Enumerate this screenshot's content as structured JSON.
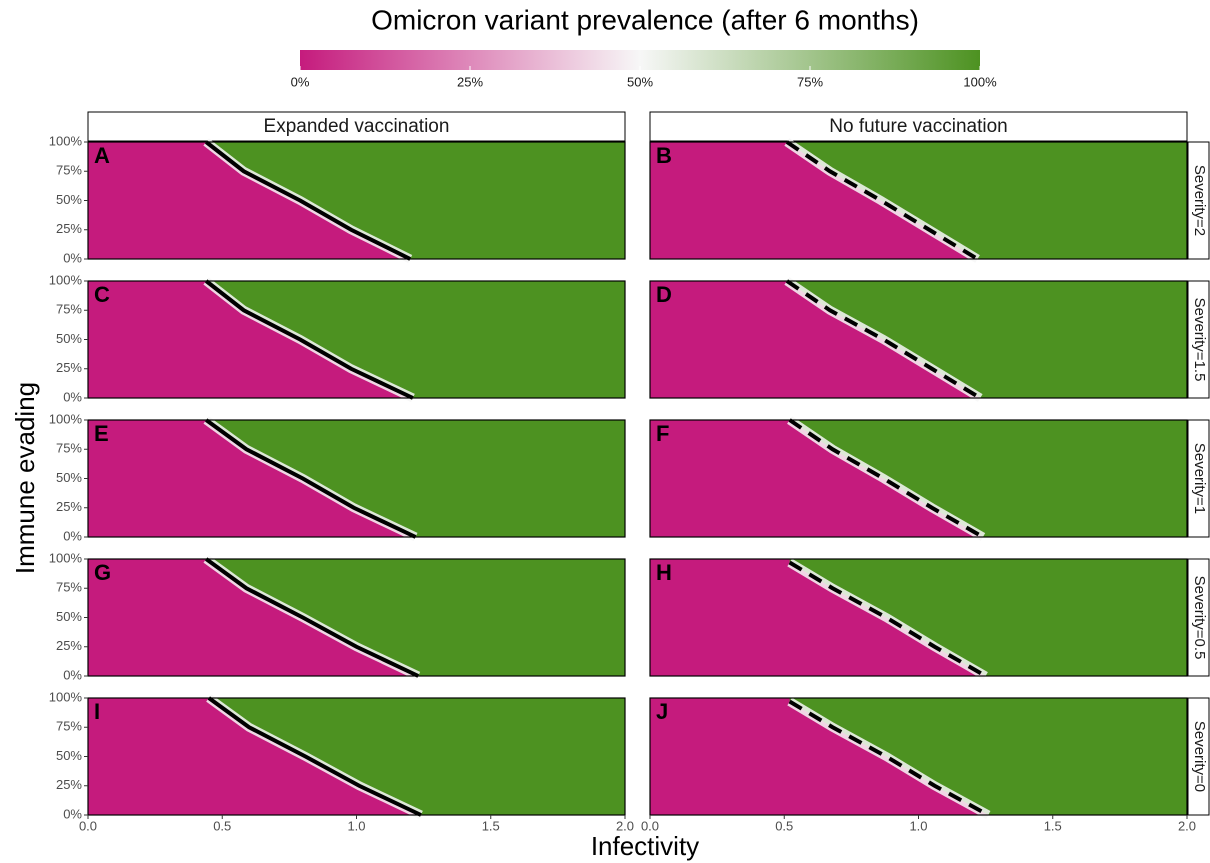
{
  "chart_data": {
    "type": "heatmap",
    "title": "Omicron variant prevalence (after 6 months)",
    "x_label": "Infectivity",
    "y_label": "Immune evading",
    "colorbar": {
      "colors": [
        "#c51b7d",
        "#f7f7f7",
        "#4d9221"
      ],
      "lim": [
        0,
        100
      ],
      "ticks": [
        {
          "value": 0,
          "label": "0%"
        },
        {
          "value": 25,
          "label": "25%"
        },
        {
          "value": 50,
          "label": "50%"
        },
        {
          "value": 75,
          "label": "75%"
        },
        {
          "value": 100,
          "label": "100%"
        }
      ]
    },
    "xlim": [
      0,
      2
    ],
    "xticks": [
      {
        "value": 0,
        "label": "0.0"
      },
      0.5,
      {
        "value": 1,
        "label": "1.0"
      },
      1.5,
      {
        "value": 2,
        "label": "2.0"
      }
    ],
    "ylim": [
      0,
      100
    ],
    "yticks": [
      {
        "value": 0,
        "label": "0%"
      },
      {
        "value": 25,
        "label": "25%"
      },
      {
        "value": 50,
        "label": "50%"
      },
      {
        "value": 75,
        "label": "75%"
      },
      {
        "value": 100,
        "label": "100%"
      }
    ],
    "columns": [
      {
        "name": "Expanded vaccination",
        "line_style": "solid"
      },
      {
        "name": "No future vaccination",
        "line_style": "dashed"
      }
    ],
    "rows": [
      "Severity=2",
      "Severity=1.5",
      "Severity=1",
      "Severity=0.5",
      "Severity=0"
    ],
    "panels": [
      {
        "label": "A",
        "boundary": {
          "x": [
            0.44,
            0.58,
            0.79,
            0.98,
            1.2
          ],
          "y": [
            100,
            75,
            50,
            25,
            0
          ]
        }
      },
      {
        "label": "B",
        "boundary": {
          "x": [
            0.51,
            0.67,
            0.86,
            1.04,
            1.22
          ],
          "y": [
            100,
            75,
            50,
            25,
            0
          ]
        }
      },
      {
        "label": "C",
        "boundary": {
          "x": [
            0.44,
            0.58,
            0.79,
            0.98,
            1.21
          ],
          "y": [
            100,
            75,
            50,
            25,
            0
          ]
        }
      },
      {
        "label": "D",
        "boundary": {
          "x": [
            0.51,
            0.67,
            0.87,
            1.05,
            1.23
          ],
          "y": [
            100,
            75,
            50,
            25,
            0
          ]
        }
      },
      {
        "label": "E",
        "boundary": {
          "x": [
            0.44,
            0.59,
            0.8,
            0.99,
            1.22
          ],
          "y": [
            100,
            75,
            50,
            25,
            0
          ]
        }
      },
      {
        "label": "F",
        "boundary": {
          "x": [
            0.52,
            0.68,
            0.87,
            1.05,
            1.24
          ],
          "y": [
            100,
            75,
            50,
            25,
            0
          ]
        }
      },
      {
        "label": "G",
        "boundary": {
          "x": [
            0.44,
            0.59,
            0.8,
            1.0,
            1.23
          ],
          "y": [
            100,
            75,
            50,
            25,
            0
          ]
        }
      },
      {
        "label": "H",
        "boundary": {
          "x": [
            0.52,
            0.68,
            0.88,
            1.06,
            1.25
          ],
          "y": [
            97,
            75,
            50,
            25,
            0
          ]
        }
      },
      {
        "label": "I",
        "boundary": {
          "x": [
            0.45,
            0.6,
            0.81,
            1.01,
            1.24
          ],
          "y": [
            100,
            75,
            50,
            25,
            0
          ]
        }
      },
      {
        "label": "J",
        "boundary": {
          "x": [
            0.52,
            0.68,
            0.88,
            1.06,
            1.26
          ],
          "y": [
            97,
            75,
            50,
            25,
            0
          ]
        }
      }
    ]
  }
}
